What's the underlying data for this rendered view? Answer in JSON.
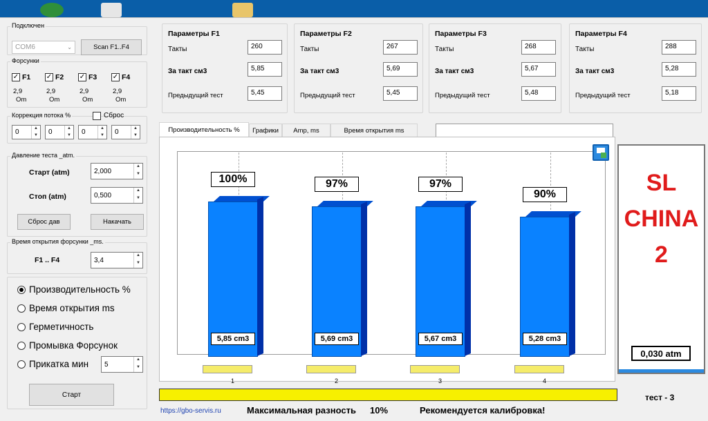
{
  "connection": {
    "group_label": "Подключен",
    "port_value": "COM6",
    "scan_label": "Scan F1..F4"
  },
  "injectors": {
    "group_label": "Форсунки",
    "items": [
      {
        "label": "F1",
        "checked": true,
        "value": "2,9",
        "unit": "Om"
      },
      {
        "label": "F2",
        "checked": true,
        "value": "2,9",
        "unit": "Om"
      },
      {
        "label": "F3",
        "checked": true,
        "value": "2,9",
        "unit": "Om"
      },
      {
        "label": "F4",
        "checked": true,
        "value": "2,9",
        "unit": "Om"
      }
    ]
  },
  "flow_correction": {
    "group_label": "Коррекция потока %",
    "reset_label": "Сброс",
    "values": [
      "0",
      "0",
      "0",
      "0"
    ]
  },
  "pressure": {
    "group_label": "Давление теста _atm.",
    "start_label": "Старт (atm)",
    "start_value": "2,000",
    "stop_label": "Стоп (atm)",
    "stop_value": "0,500",
    "reset_button": "Сброс дав",
    "pump_button": "Накачать"
  },
  "open_time": {
    "group_label": "Время открытия форсунки _ms.",
    "label": "F1 .. F4",
    "value": "3,4"
  },
  "modes": {
    "items": [
      {
        "label": "Производительность %",
        "selected": true
      },
      {
        "label": "Время открытия ms",
        "selected": false
      },
      {
        "label": "Герметичность",
        "selected": false
      },
      {
        "label": "Промывка Форсунок",
        "selected": false
      },
      {
        "label": "Прикатка мин",
        "selected": false
      }
    ],
    "run_in_value": "5",
    "start_button": "Старт"
  },
  "params": [
    {
      "title": "Параметры F1",
      "cycles_label": "Такты",
      "cycles": "260",
      "per_cycle_label": "За такт см3",
      "per_cycle": "5,85",
      "prev_label": "Предыдущий тест",
      "prev": "5,45"
    },
    {
      "title": "Параметры F2",
      "cycles_label": "Такты",
      "cycles": "267",
      "per_cycle_label": "За такт см3",
      "per_cycle": "5,69",
      "prev_label": "Предыдущий тест",
      "prev": "5,45"
    },
    {
      "title": "Параметры F3",
      "cycles_label": "Такты",
      "cycles": "268",
      "per_cycle_label": "За такт см3",
      "per_cycle": "5,67",
      "prev_label": "Предыдущий тест",
      "prev": "5,48"
    },
    {
      "title": "Параметры F4",
      "cycles_label": "Такты",
      "cycles": "288",
      "per_cycle_label": "За такт см3",
      "per_cycle": "5,28",
      "prev_label": "Предыдущий тест",
      "prev": "5,18"
    }
  ],
  "tabs": [
    "Производительность %",
    "Графики",
    "Amp, ms",
    "Время открытия ms"
  ],
  "chart_data": {
    "type": "bar",
    "categories": [
      "1",
      "2",
      "3",
      "4"
    ],
    "values": [
      100,
      97,
      97,
      90
    ],
    "value_labels": [
      "100%",
      "97%",
      "97%",
      "90%"
    ],
    "volume_labels": [
      "5,85 cm3",
      "5,69 cm3",
      "5,67 cm3",
      "5,28 cm3"
    ],
    "ylim": [
      0,
      100
    ],
    "bar_color": "#0a82ff"
  },
  "side_panel": {
    "brand_lines": [
      "SL",
      "CHINA",
      "2"
    ],
    "brand_color": "#e01b1b",
    "pressure_reading": "0,030 atm"
  },
  "status": {
    "url": "https://gbo-servis.ru",
    "max_diff_label": "Максимальная разность",
    "max_diff_value": "10%",
    "recommendation": "Рекомендуется калибровка!",
    "test_label": "тест - 3",
    "progress": 1.0,
    "progress_color": "#f7f000"
  }
}
